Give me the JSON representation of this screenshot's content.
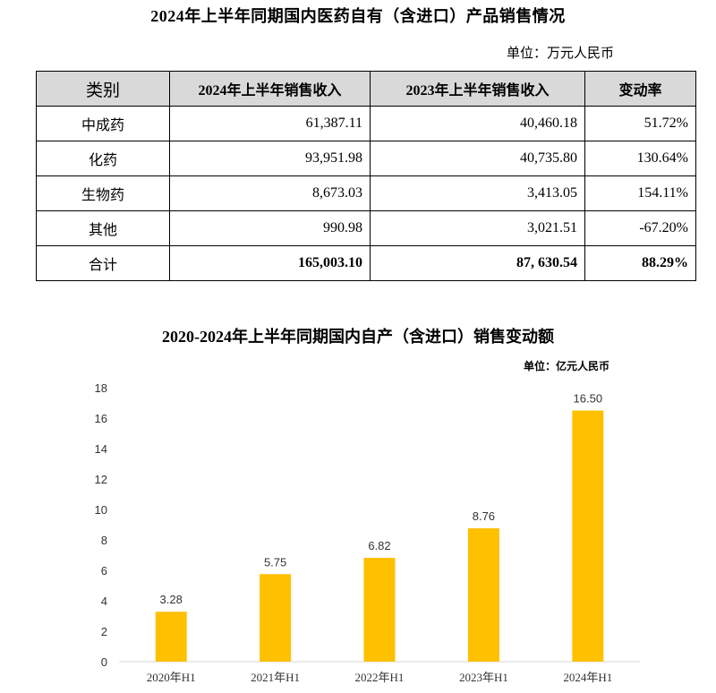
{
  "table": {
    "title": "2024年上半年同期国内医药自有（含进口）产品销售情况",
    "unit": "单位：万元人民币",
    "headers": [
      "类别",
      "2024年上半年销售收入",
      "2023年上半年销售收入",
      "变动率"
    ],
    "rows": [
      [
        "中成药",
        "61,387.11",
        "40,460.18",
        "51.72%"
      ],
      [
        "化药",
        "93,951.98",
        "40,735.80",
        "130.64%"
      ],
      [
        "生物药",
        "8,673.03",
        "3,413.05",
        "154.11%"
      ],
      [
        "其他",
        "990.98",
        "3,021.51",
        "-67.20%"
      ],
      [
        "合计",
        "165,003.10",
        "87, 630.54",
        "88.29%"
      ]
    ]
  },
  "chart_data": {
    "type": "bar",
    "title": "2020-2024年上半年同期国内自产（含进口）销售变动额",
    "unit_label": "单位：亿元人民币",
    "categories": [
      "2020年H1",
      "2021年H1",
      "2022年H1",
      "2023年H1",
      "2024年H1"
    ],
    "values": [
      3.28,
      5.75,
      6.82,
      8.76,
      16.5
    ],
    "data_labels": [
      "3.28",
      "5.75",
      "6.82",
      "8.76",
      "16.50"
    ],
    "yticks": [
      0,
      2,
      4,
      6,
      8,
      10,
      12,
      14,
      16,
      18
    ],
    "ylim": [
      0,
      18
    ],
    "bar_color": "#FFC000",
    "grid": false,
    "legend": "none"
  }
}
